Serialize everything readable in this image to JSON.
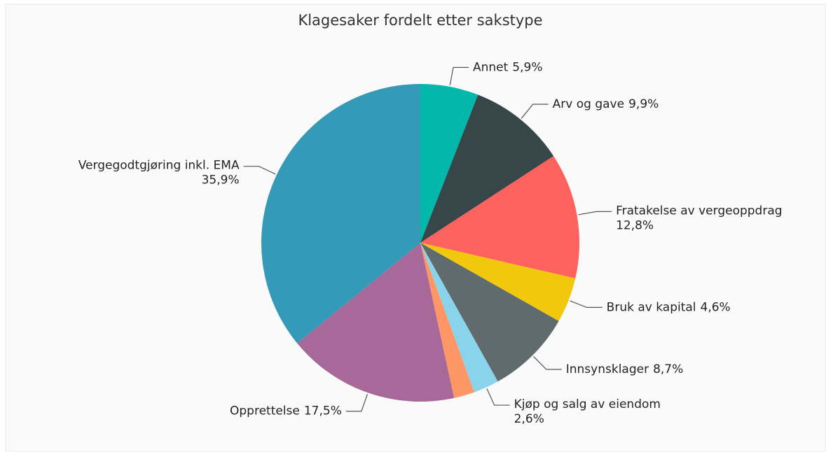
{
  "chart_data": {
    "type": "pie",
    "title": "Klagesaker fordelt etter sakstype",
    "categories": [
      "Annet",
      "Arv og gave",
      "Fratakelse av vergeoppdrag",
      "Bruk av kapital",
      "Innsynsklager",
      "Kjøp og salg av eiendom",
      null,
      "Opprettelse",
      "Vergegodtgjøring inkl. EMA"
    ],
    "values": [
      5.9,
      9.9,
      12.8,
      4.6,
      8.7,
      2.6,
      2.1,
      17.5,
      35.9
    ],
    "value_labels": [
      "5,9%",
      "9,9%",
      "12,8%",
      "4,6%",
      "8,7%",
      "2,6%",
      null,
      "17,5%",
      "35,9%"
    ],
    "colors": [
      "#01B8AA",
      "#374649",
      "#FD625E",
      "#F2C80F",
      "#5F6B6D",
      "#8AD4EB",
      "#FE9666",
      "#A66999",
      "#3599B8"
    ]
  }
}
